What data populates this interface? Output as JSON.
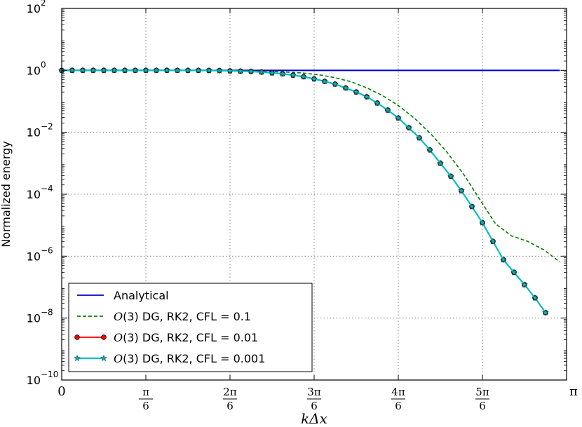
{
  "chart_data": {
    "type": "line",
    "xlabel": "kΔx",
    "ylabel": "Normalized energy",
    "xlim": [
      0,
      3.14159
    ],
    "ylim": [
      1e-10,
      100
    ],
    "yscale": "log",
    "grid": true,
    "legend_position": "bottom-left",
    "x_ticks": [
      {
        "value": 0,
        "num": "0",
        "den": ""
      },
      {
        "value": 0.5236,
        "num": "π",
        "den": "6"
      },
      {
        "value": 1.0472,
        "num": "2π",
        "den": "6"
      },
      {
        "value": 1.5708,
        "num": "3π",
        "den": "6"
      },
      {
        "value": 2.0944,
        "num": "4π",
        "den": "6"
      },
      {
        "value": 2.618,
        "num": "5π",
        "den": "6"
      },
      {
        "value": 3.14159,
        "num": "π",
        "den": ""
      }
    ],
    "y_ticks": [
      {
        "exp": -10,
        "label": "10",
        "sup": "−10"
      },
      {
        "exp": -8,
        "label": "10",
        "sup": "−8"
      },
      {
        "exp": -6,
        "label": "10",
        "sup": "−6"
      },
      {
        "exp": -4,
        "label": "10",
        "sup": "−4"
      },
      {
        "exp": -2,
        "label": "10",
        "sup": "−2"
      },
      {
        "exp": 0,
        "label": "10",
        "sup": "0"
      },
      {
        "exp": 2,
        "label": "10",
        "sup": "2"
      }
    ],
    "series": [
      {
        "name": "Analytical",
        "style": "solid",
        "marker": "none",
        "color": "#0000cc",
        "x": [
          0,
          3.1
        ],
        "y": [
          1,
          1
        ]
      },
      {
        "name": "O(3) DG, RK2, CFL = 0.1",
        "style": "dashed",
        "marker": "none",
        "color": "#008000",
        "x": [
          0,
          0.2,
          0.4,
          0.6,
          0.8,
          1.0,
          1.2,
          1.4,
          1.5,
          1.6,
          1.7,
          1.8,
          1.9,
          2.0,
          2.1,
          2.2,
          2.3,
          2.4,
          2.5,
          2.6,
          2.7,
          2.8,
          2.9,
          3.0,
          3.1
        ],
        "y": [
          1,
          1,
          1,
          0.998,
          0.993,
          0.98,
          0.95,
          0.88,
          0.82,
          0.72,
          0.58,
          0.43,
          0.27,
          0.15,
          0.07,
          0.027,
          0.0085,
          0.0022,
          0.00045,
          7e-05,
          1.1e-05,
          4.5e-06,
          3e-06,
          1.6e-06,
          6.5e-07
        ]
      },
      {
        "name": "O(3) DG, RK2, CFL = 0.01",
        "style": "solid",
        "marker": "circle",
        "color": "#ff0000",
        "x": [
          0,
          0.0654,
          0.1309,
          0.1963,
          0.2618,
          0.3272,
          0.3927,
          0.4581,
          0.5236,
          0.589,
          0.6545,
          0.7199,
          0.7854,
          0.8508,
          0.9163,
          0.9817,
          1.0472,
          1.1126,
          1.1781,
          1.2435,
          1.309,
          1.3744,
          1.4399,
          1.5053,
          1.5708,
          1.6362,
          1.7017,
          1.7671,
          1.8326,
          1.898,
          1.9635,
          2.0289,
          2.0944,
          2.1598,
          2.2253,
          2.2907,
          2.3562,
          2.4216,
          2.4871,
          2.5525,
          2.618,
          2.6834,
          2.7489,
          2.8143,
          2.8798,
          2.9452,
          3.0107
        ],
        "y": [
          1,
          1,
          1,
          1,
          1,
          1,
          1,
          1,
          1,
          1,
          0.999,
          0.998,
          0.997,
          0.995,
          0.99,
          0.98,
          0.965,
          0.945,
          0.92,
          0.88,
          0.83,
          0.77,
          0.7,
          0.62,
          0.53,
          0.44,
          0.36,
          0.27,
          0.2,
          0.14,
          0.088,
          0.052,
          0.029,
          0.014,
          0.0066,
          0.0027,
          0.001,
          0.00038,
          0.00013,
          4e-05,
          1.2e-05,
          3e-06,
          7.6e-07,
          3e-07,
          1.2e-07,
          4.5e-08,
          1.5e-08
        ]
      },
      {
        "name": "O(3) DG, RK2, CFL = 0.001",
        "style": "solid",
        "marker": "star",
        "color": "#00bfbf",
        "x": [
          0,
          0.0654,
          0.1309,
          0.1963,
          0.2618,
          0.3272,
          0.3927,
          0.4581,
          0.5236,
          0.589,
          0.6545,
          0.7199,
          0.7854,
          0.8508,
          0.9163,
          0.9817,
          1.0472,
          1.1126,
          1.1781,
          1.2435,
          1.309,
          1.3744,
          1.4399,
          1.5053,
          1.5708,
          1.6362,
          1.7017,
          1.7671,
          1.8326,
          1.898,
          1.9635,
          2.0289,
          2.0944,
          2.1598,
          2.2253,
          2.2907,
          2.3562,
          2.4216,
          2.4871,
          2.5525,
          2.618,
          2.6834,
          2.7489,
          2.8143,
          2.8798,
          2.9452,
          3.0107
        ],
        "y": [
          1,
          1,
          1,
          1,
          1,
          1,
          1,
          1,
          1,
          1,
          0.999,
          0.998,
          0.997,
          0.995,
          0.99,
          0.98,
          0.965,
          0.945,
          0.92,
          0.88,
          0.83,
          0.77,
          0.7,
          0.62,
          0.53,
          0.44,
          0.36,
          0.27,
          0.2,
          0.14,
          0.088,
          0.052,
          0.029,
          0.014,
          0.0066,
          0.0027,
          0.001,
          0.00038,
          0.00013,
          4e-05,
          1.2e-05,
          3e-06,
          7.6e-07,
          3e-07,
          1.2e-07,
          4.5e-08,
          1.5e-08
        ]
      }
    ]
  }
}
